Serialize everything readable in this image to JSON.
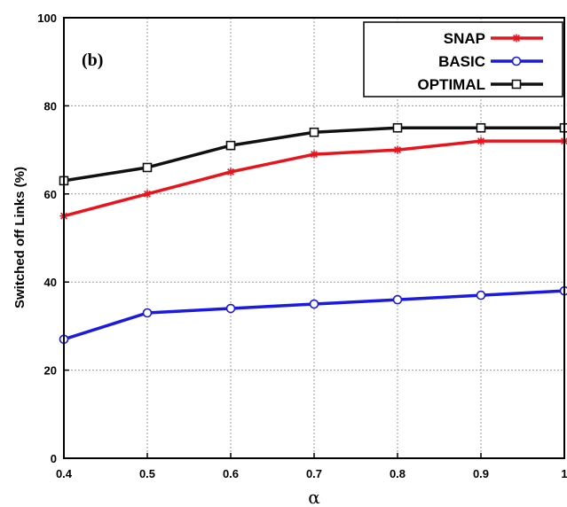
{
  "chart_data": {
    "type": "line",
    "panel_label": "(b)",
    "xlabel": "α",
    "ylabel": "Switched off Links (%)",
    "xlim": [
      0.4,
      1
    ],
    "ylim": [
      0,
      100
    ],
    "x_ticks": [
      "0.4",
      "0.5",
      "0.6",
      "0.7",
      "0.8",
      "0.9",
      "1"
    ],
    "y_ticks": [
      "0",
      "20",
      "40",
      "60",
      "80",
      "100"
    ],
    "x": [
      0.4,
      0.5,
      0.6,
      0.7,
      0.8,
      0.9,
      1.0
    ],
    "grid": true,
    "legend_position": "top-right",
    "series": [
      {
        "name": "SNAP",
        "color": "#e8141c",
        "marker": "star",
        "values": [
          55,
          60,
          65,
          69,
          70,
          72,
          72
        ]
      },
      {
        "name": "BASIC",
        "color": "#1a1ae0",
        "marker": "circle",
        "values": [
          27,
          33,
          34,
          35,
          36,
          37,
          38
        ]
      },
      {
        "name": "OPTIMAL",
        "color": "#111111",
        "marker": "square",
        "values": [
          63,
          66,
          71,
          74,
          75,
          75,
          75
        ]
      }
    ]
  }
}
